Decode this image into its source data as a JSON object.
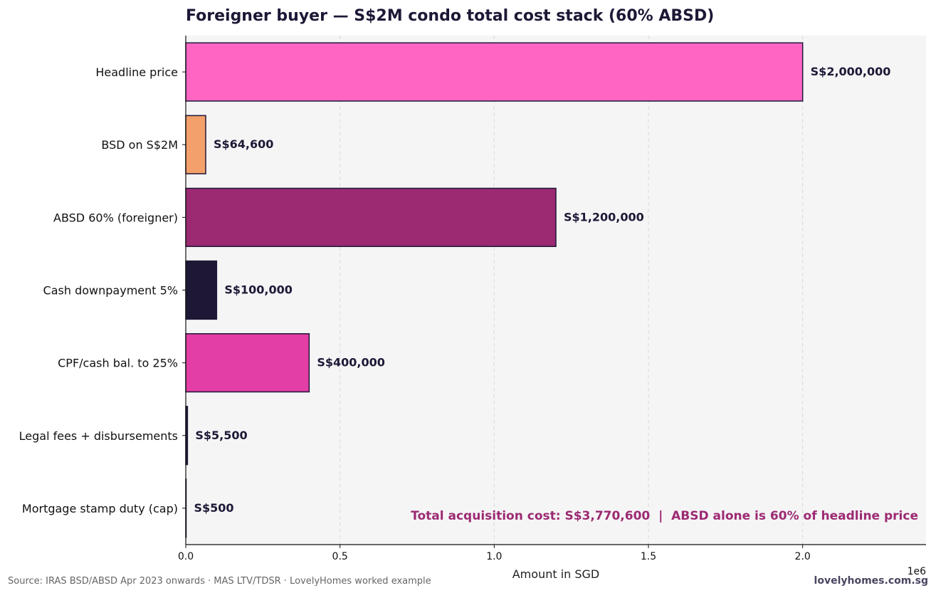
{
  "chart_data": {
    "type": "bar",
    "orientation": "horizontal",
    "title": "Foreigner buyer — S$2M condo total cost stack (60% ABSD)",
    "xlabel": "Amount in SGD",
    "ylabel": "",
    "x_offset_label": "1e6",
    "xlim": [
      0,
      2400000
    ],
    "x_ticks": [
      0,
      500000,
      1000000,
      1500000,
      2000000
    ],
    "x_tick_labels": [
      "0.0",
      "0.5",
      "1.0",
      "1.5",
      "2.0"
    ],
    "grid": "x dashed",
    "categories": [
      "Headline price",
      "BSD on S$2M",
      "ABSD 60% (foreigner)",
      "Cash downpayment 5%",
      "CPF/cash bal. to 25%",
      "Legal fees + disbursements",
      "Mortgage stamp duty (cap)"
    ],
    "values": [
      2000000,
      64600,
      1200000,
      100000,
      400000,
      5500,
      500
    ],
    "value_labels": [
      "S$2,000,000",
      "S$64,600",
      "S$1,200,000",
      "S$100,000",
      "S$400,000",
      "S$5,500",
      "S$500"
    ],
    "colors": [
      "#ff66c4",
      "#f4a06b",
      "#9c2a72",
      "#1e1836",
      "#e33ea5",
      "#1e1836",
      "#1e1836"
    ],
    "annotation": "Total acquisition cost: S$3,770,600  |  ABSD alone is 60% of headline price"
  },
  "footer": {
    "source": "Source: IRAS BSD/ABSD Apr 2023 onwards · MAS LTV/TDSR · LovelyHomes worked example",
    "brand": "lovelyhomes.com.sg"
  },
  "colors": {
    "plot_background": "#f5f5f6",
    "bar_edge": "#1e1836",
    "annotation": "#9c2a72"
  }
}
